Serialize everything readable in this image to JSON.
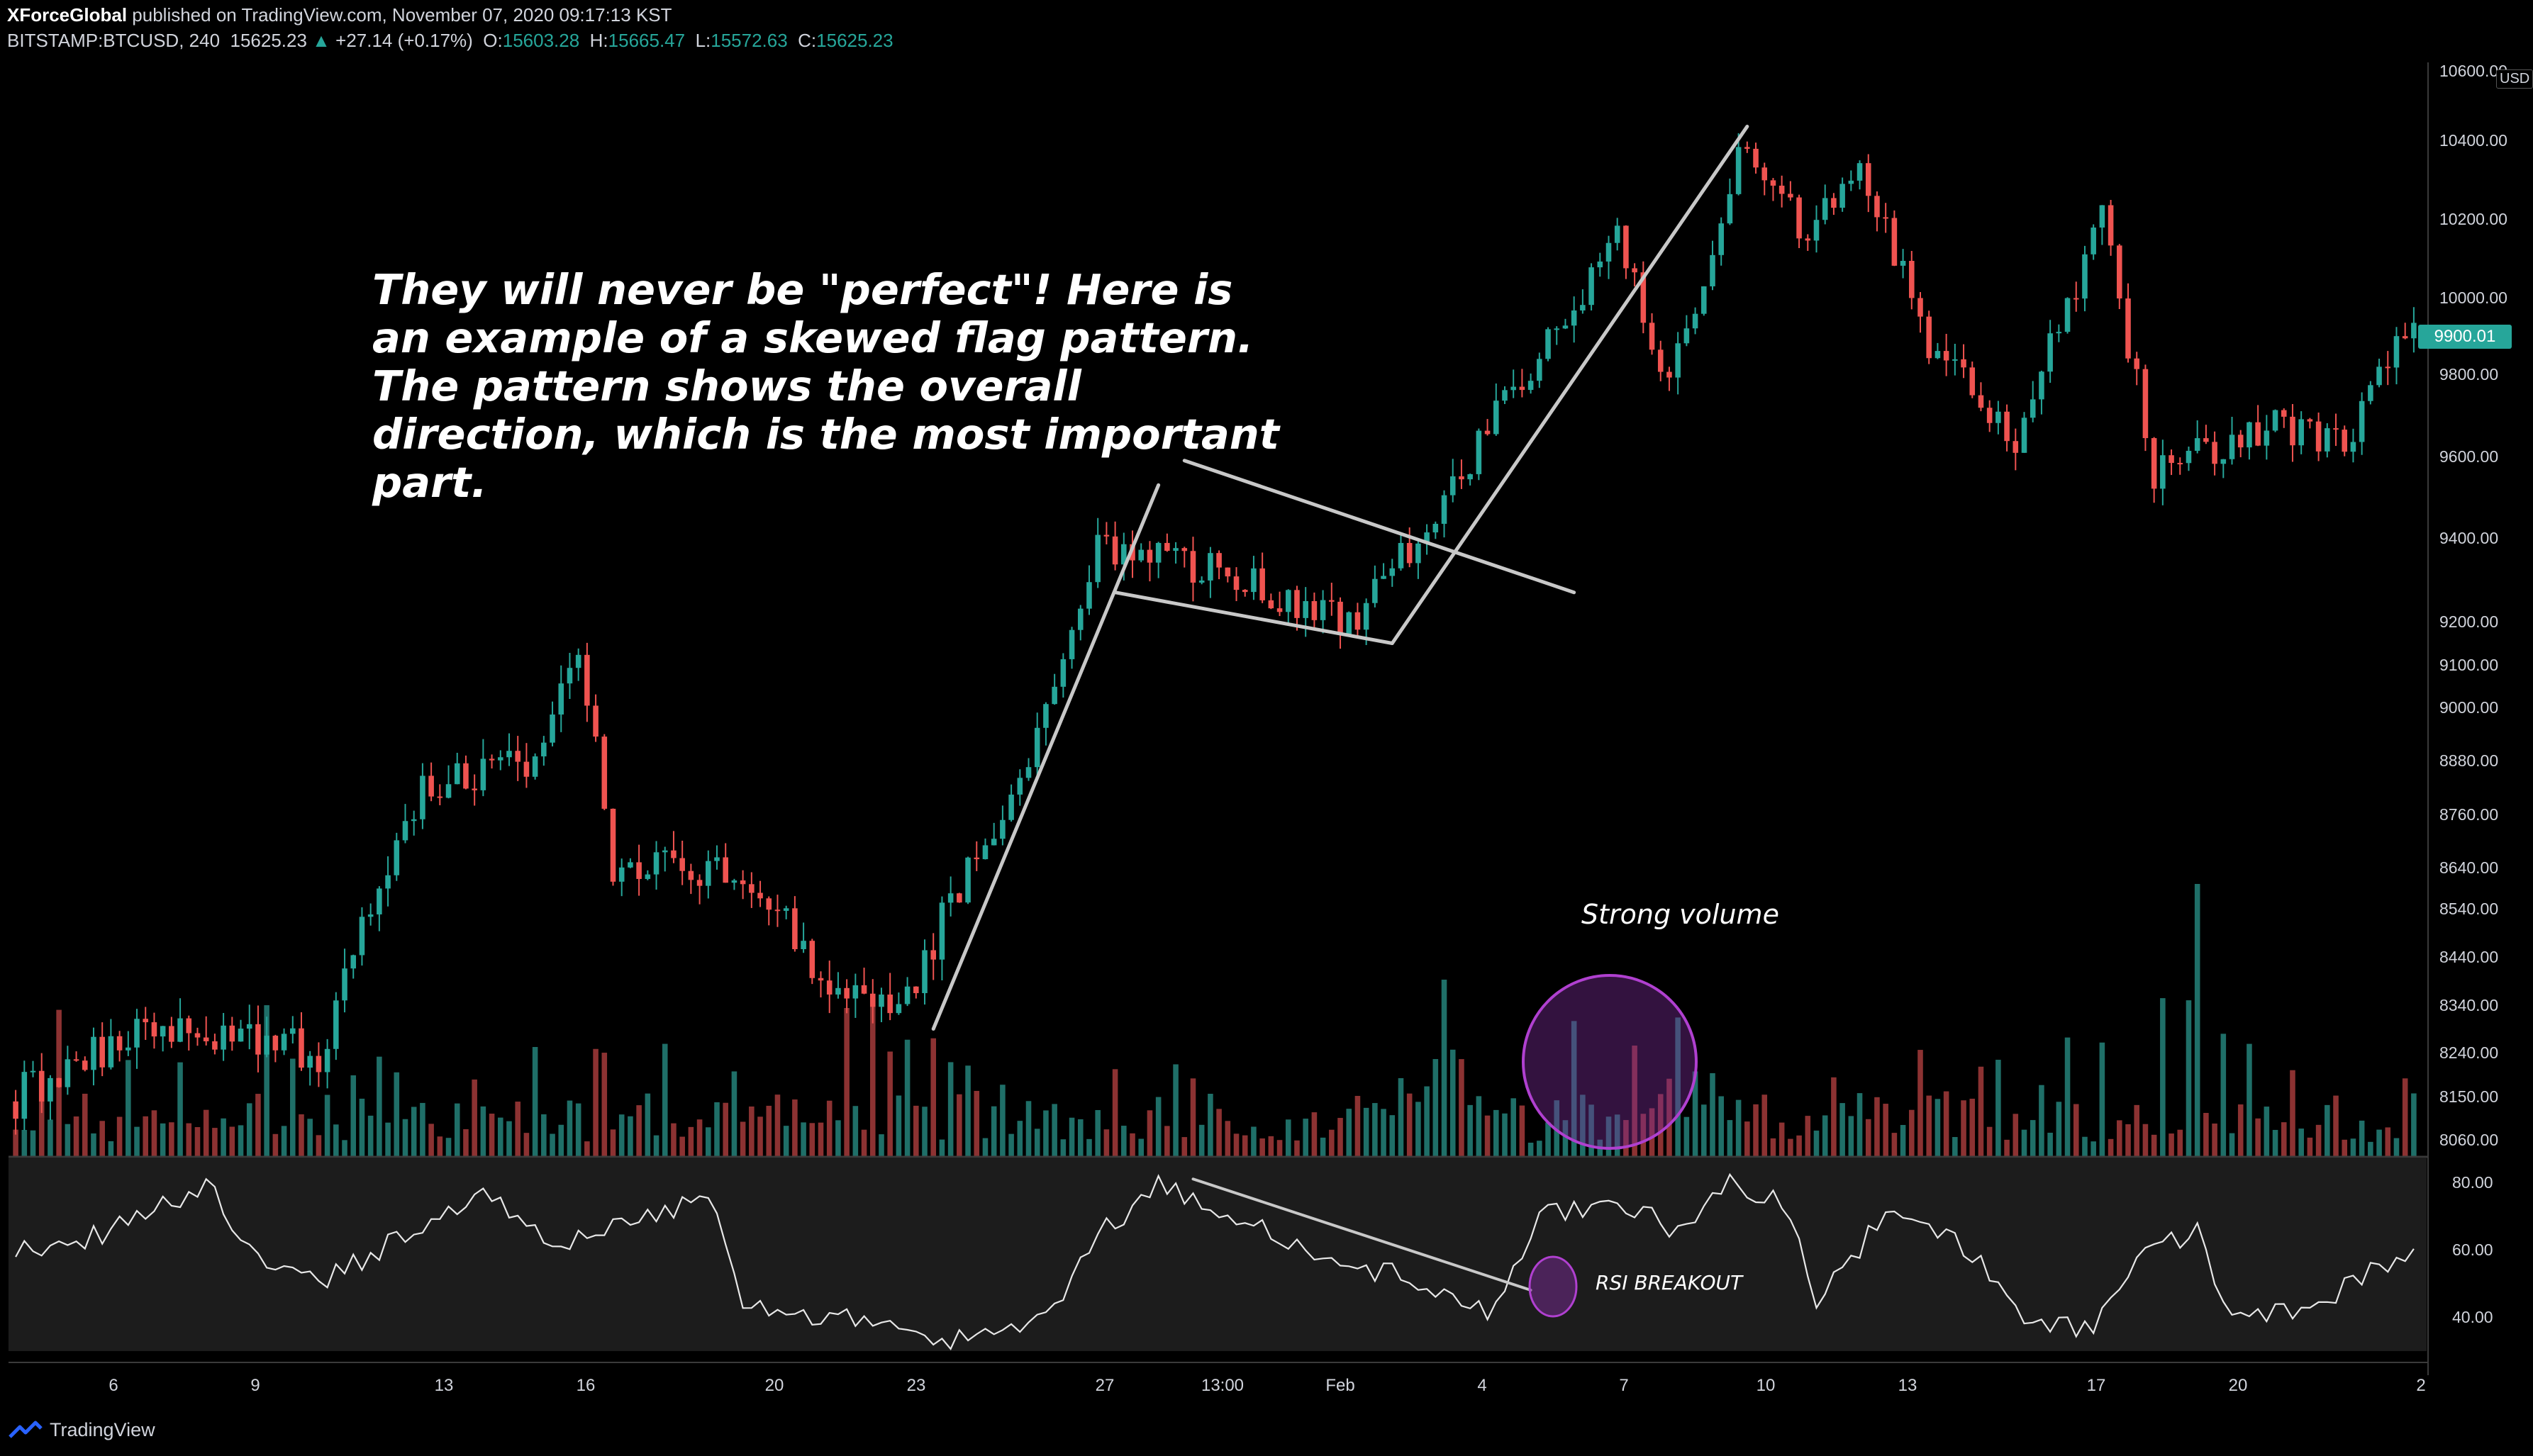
{
  "header": {
    "publisher": "XForceGlobal",
    "published_text": "published on TradingView.com, November 07, 2020 09:17:13 KST",
    "symbol": "BITSTAMP:BTCUSD, 240",
    "last_price": "15625.23",
    "change": "+27.14 (+0.17%)",
    "o_label": "O:",
    "o_value": "15603.28",
    "h_label": "H:",
    "h_value": "15665.47",
    "l_label": "L:",
    "l_value": "15572.63",
    "c_label": "C:",
    "c_value": "15625.23"
  },
  "annotations": {
    "note": "They will never be \"perfect\"! Here is an example of a skewed flag pattern. The pattern shows the overall direction, which is the most important part.",
    "volume_label": "Strong volume",
    "rsi_label": "RSI BREAKOUT"
  },
  "price_tag": "9900.01",
  "currency": "USD",
  "footer": {
    "brand": "TradingView"
  },
  "colors": {
    "up": "#26a69a",
    "down": "#ef5350",
    "vol_up": "#1f6f68",
    "vol_down": "#8c3232",
    "rsi_band": "#1c1c1c",
    "pattern_line": "#c8c8c8",
    "highlight": "#b040d0",
    "background": "#000000"
  },
  "chart_data": [
    {
      "type": "candlestick",
      "symbol": "BITSTAMP:BTCUSD",
      "timeframe": "240",
      "y_ticks": [
        8060,
        8150,
        8240,
        8340,
        8440,
        8540,
        8640,
        8760,
        8880,
        9000,
        9100,
        9200,
        9400,
        9600,
        9800,
        10000,
        10200,
        10400,
        10600
      ],
      "y_tick_labels": [
        "8060.00",
        "8150.00",
        "8240.00",
        "8340.00",
        "8440.00",
        "8540.00",
        "8640.00",
        "8760.00",
        "8880.00",
        "9000.00",
        "9100.00",
        "9200.00",
        "9400.00",
        "9600.00",
        "9800.00",
        "10000.00",
        "10200.00",
        "10400.00",
        "10600.00"
      ],
      "x_tick_labels": [
        "6",
        "9",
        "13",
        "16",
        "20",
        "23",
        "27",
        "13:00",
        "Feb",
        "4",
        "7",
        "10",
        "13",
        "17",
        "20",
        "2"
      ],
      "anchors": [
        {
          "bar": 0,
          "price": 8140
        },
        {
          "bar": 18,
          "price": 8300
        },
        {
          "bar": 36,
          "price": 8240
        },
        {
          "bar": 48,
          "price": 8820
        },
        {
          "bar": 62,
          "price": 8900
        },
        {
          "bar": 66,
          "price": 9150
        },
        {
          "bar": 70,
          "price": 8650
        },
        {
          "bar": 86,
          "price": 8620
        },
        {
          "bar": 94,
          "price": 8400
        },
        {
          "bar": 103,
          "price": 8320
        },
        {
          "bar": 118,
          "price": 8900
        },
        {
          "bar": 126,
          "price": 9380
        },
        {
          "bar": 140,
          "price": 9320
        },
        {
          "bar": 156,
          "price": 9200
        },
        {
          "bar": 164,
          "price": 9440
        },
        {
          "bar": 176,
          "price": 9820
        },
        {
          "bar": 186,
          "price": 10150
        },
        {
          "bar": 192,
          "price": 9760
        },
        {
          "bar": 200,
          "price": 10380
        },
        {
          "bar": 208,
          "price": 10160
        },
        {
          "bar": 214,
          "price": 10360
        },
        {
          "bar": 222,
          "price": 9880
        },
        {
          "bar": 232,
          "price": 9640
        },
        {
          "bar": 242,
          "price": 10200
        },
        {
          "bar": 248,
          "price": 9560
        },
        {
          "bar": 262,
          "price": 9680
        },
        {
          "bar": 270,
          "price": 9620
        },
        {
          "bar": 276,
          "price": 9900
        }
      ],
      "annotation_lines": [
        {
          "name": "flagpole",
          "from": {
            "bar": 106,
            "price": 8290
          },
          "to": {
            "bar": 132,
            "price": 9530
          }
        },
        {
          "name": "flag-upper",
          "from": {
            "bar": 135,
            "price": 9590
          },
          "to": {
            "bar": 180,
            "price": 9270
          }
        },
        {
          "name": "flag-lower",
          "from": {
            "bar": 127,
            "price": 9270
          },
          "to": {
            "bar": 159,
            "price": 9150
          }
        },
        {
          "name": "breakout-leg",
          "from": {
            "bar": 159,
            "price": 9150
          },
          "to": {
            "bar": 200,
            "price": 10440
          }
        }
      ]
    },
    {
      "type": "bar",
      "name": "Volume",
      "note": "volume histogram under price; spike highlighted near bar 164"
    },
    {
      "type": "line",
      "name": "RSI",
      "y_ticks": [
        40,
        60,
        80
      ],
      "y_tick_labels": [
        "40.00",
        "60.00",
        "80.00"
      ],
      "band": [
        30,
        70
      ],
      "anchors": [
        {
          "bar": 0,
          "value": 60
        },
        {
          "bar": 10,
          "value": 64
        },
        {
          "bar": 22,
          "value": 79
        },
        {
          "bar": 28,
          "value": 58
        },
        {
          "bar": 36,
          "value": 52
        },
        {
          "bar": 46,
          "value": 65
        },
        {
          "bar": 54,
          "value": 78
        },
        {
          "bar": 62,
          "value": 62
        },
        {
          "bar": 72,
          "value": 68
        },
        {
          "bar": 80,
          "value": 76
        },
        {
          "bar": 84,
          "value": 42
        },
        {
          "bar": 96,
          "value": 40
        },
        {
          "bar": 106,
          "value": 33
        },
        {
          "bar": 118,
          "value": 38
        },
        {
          "bar": 126,
          "value": 66
        },
        {
          "bar": 132,
          "value": 80
        },
        {
          "bar": 140,
          "value": 72
        },
        {
          "bar": 150,
          "value": 58
        },
        {
          "bar": 160,
          "value": 52
        },
        {
          "bar": 170,
          "value": 42
        },
        {
          "bar": 172,
          "value": 48
        },
        {
          "bar": 176,
          "value": 70
        },
        {
          "bar": 186,
          "value": 72
        },
        {
          "bar": 192,
          "value": 66
        },
        {
          "bar": 198,
          "value": 79
        },
        {
          "bar": 204,
          "value": 74
        },
        {
          "bar": 208,
          "value": 46
        },
        {
          "bar": 216,
          "value": 70
        },
        {
          "bar": 224,
          "value": 64
        },
        {
          "bar": 232,
          "value": 40
        },
        {
          "bar": 240,
          "value": 36
        },
        {
          "bar": 246,
          "value": 58
        },
        {
          "bar": 252,
          "value": 66
        },
        {
          "bar": 256,
          "value": 38
        },
        {
          "bar": 264,
          "value": 42
        },
        {
          "bar": 270,
          "value": 50
        },
        {
          "bar": 276,
          "value": 58
        }
      ],
      "annotation_lines": [
        {
          "name": "rsi-trendline",
          "from": {
            "bar": 136,
            "value": 81
          },
          "to": {
            "bar": 175,
            "value": 48
          }
        }
      ]
    }
  ]
}
